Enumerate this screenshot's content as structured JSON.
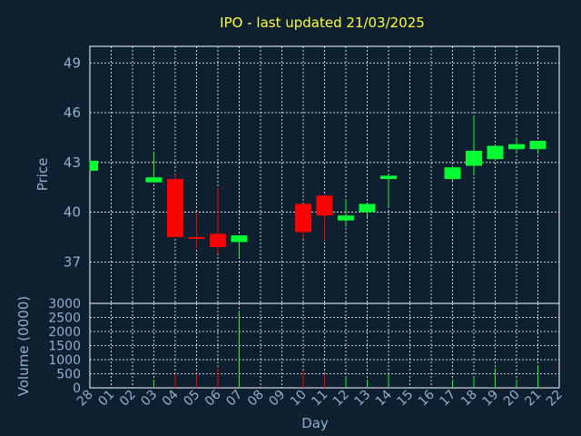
{
  "chart_data": [
    {
      "type": "candlestick",
      "title": "IPO - last updated 21/03/2025",
      "ylabel": "Price",
      "ylim": [
        34.5,
        50
      ],
      "yticks": [
        37,
        40,
        43,
        46,
        49
      ],
      "grid": true,
      "up_color": "#00ff33",
      "down_color": "#ff0000",
      "x_tick_labels": [
        "28",
        "01",
        "02",
        "03",
        "04",
        "05",
        "06",
        "07",
        "08",
        "09",
        "10",
        "11",
        "12",
        "13",
        "14",
        "15",
        "16",
        "17",
        "18",
        "19",
        "20",
        "21",
        "22"
      ],
      "candles": [
        {
          "day": "28",
          "open": 42.5,
          "close": 43.1,
          "high": 43.1,
          "low": 42.5
        },
        {
          "day": "03",
          "open": 41.8,
          "close": 42.1,
          "high": 43.6,
          "low": 41.8
        },
        {
          "day": "04",
          "open": 42.0,
          "close": 38.5,
          "high": 42.3,
          "low": 38.5
        },
        {
          "day": "05",
          "open": 38.5,
          "close": 38.4,
          "high": 40.0,
          "low": 37.8
        },
        {
          "day": "06",
          "open": 38.7,
          "close": 37.9,
          "high": 41.5,
          "low": 37.5
        },
        {
          "day": "07",
          "open": 38.2,
          "close": 38.6,
          "high": 38.6,
          "low": 37.3
        },
        {
          "day": "10",
          "open": 40.5,
          "close": 38.8,
          "high": 40.5,
          "low": 38.4
        },
        {
          "day": "11",
          "open": 41.0,
          "close": 39.8,
          "high": 41.0,
          "low": 38.3
        },
        {
          "day": "12",
          "open": 39.5,
          "close": 39.8,
          "high": 40.8,
          "low": 39.1
        },
        {
          "day": "13",
          "open": 40.0,
          "close": 40.5,
          "high": 40.5,
          "low": 39.7
        },
        {
          "day": "14",
          "open": 42.0,
          "close": 42.2,
          "high": 42.3,
          "low": 40.3
        },
        {
          "day": "17",
          "open": 42.0,
          "close": 42.7,
          "high": 42.8,
          "low": 41.9
        },
        {
          "day": "18",
          "open": 42.8,
          "close": 43.7,
          "high": 45.8,
          "low": 42.3
        },
        {
          "day": "19",
          "open": 43.2,
          "close": 44.0,
          "high": 44.0,
          "low": 43.1
        },
        {
          "day": "20",
          "open": 43.8,
          "close": 44.1,
          "high": 44.5,
          "low": 43.6
        },
        {
          "day": "21",
          "open": 43.8,
          "close": 44.3,
          "high": 44.3,
          "low": 43.5
        }
      ]
    },
    {
      "type": "bar",
      "ylabel": "Volume (0000)",
      "xlabel": "Day",
      "ylim": [
        0,
        3000
      ],
      "yticks": [
        0,
        500,
        1000,
        1500,
        2000,
        2500,
        3000
      ],
      "grid": true,
      "bars": [
        {
          "day": "03",
          "value": 300,
          "color": "#00ff33"
        },
        {
          "day": "04",
          "value": 500,
          "color": "#ff0000"
        },
        {
          "day": "05",
          "value": 500,
          "color": "#ff0000"
        },
        {
          "day": "06",
          "value": 700,
          "color": "#ff0000"
        },
        {
          "day": "07",
          "value": 2750,
          "color": "#00ff33"
        },
        {
          "day": "10",
          "value": 600,
          "color": "#ff0000"
        },
        {
          "day": "11",
          "value": 500,
          "color": "#ff0000"
        },
        {
          "day": "12",
          "value": 400,
          "color": "#00ff33"
        },
        {
          "day": "13",
          "value": 300,
          "color": "#00ff33"
        },
        {
          "day": "14",
          "value": 500,
          "color": "#00ff33"
        },
        {
          "day": "17",
          "value": 300,
          "color": "#00ff33"
        },
        {
          "day": "18",
          "value": 400,
          "color": "#00ff33"
        },
        {
          "day": "19",
          "value": 700,
          "color": "#00ff33"
        },
        {
          "day": "20",
          "value": 300,
          "color": "#00ff33"
        },
        {
          "day": "21",
          "value": 800,
          "color": "#00ff33"
        }
      ]
    }
  ]
}
